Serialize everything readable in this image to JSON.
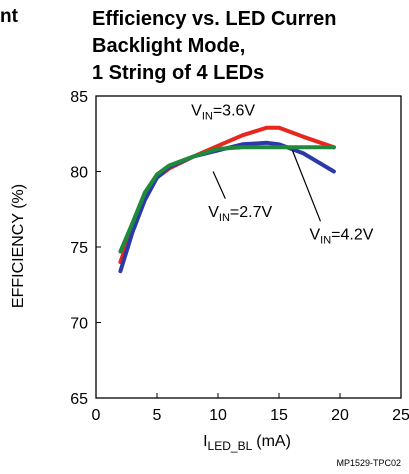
{
  "prev_title_fragment": "nt",
  "footer_code": "MP1529-TPC02",
  "chart_data": {
    "type": "line",
    "title_lines": [
      "Efficiency vs. LED Curren",
      "Backlight Mode,",
      "1 String of 4 LEDs"
    ],
    "xlabel": "I",
    "xlabel_sub": "LED_BL",
    "xlabel_unit": "(mA)",
    "ylabel": "EFFICIENCY (%)",
    "xlim": [
      0,
      25
    ],
    "ylim": [
      65,
      85
    ],
    "xticks": [
      0,
      5,
      10,
      15,
      20,
      25
    ],
    "yticks": [
      65,
      70,
      75,
      80,
      85
    ],
    "grid": false,
    "series": [
      {
        "color": "#e8281e",
        "x": [
          2,
          3,
          4,
          5,
          6,
          8,
          10,
          12,
          14,
          15,
          17,
          19.5
        ],
        "y": [
          74.0,
          76.3,
          78.3,
          79.6,
          80.2,
          81.0,
          81.7,
          82.4,
          82.9,
          82.9,
          82.3,
          81.6
        ]
      },
      {
        "color": "#2b3aa8",
        "x": [
          2,
          3,
          4,
          5,
          6,
          8,
          10,
          12,
          14,
          15,
          17,
          19.5
        ],
        "y": [
          73.4,
          76.0,
          78.1,
          79.6,
          80.3,
          81.0,
          81.4,
          81.8,
          81.9,
          81.8,
          81.2,
          80.0
        ]
      },
      {
        "color": "#1f8a3a",
        "x": [
          2,
          3,
          4,
          5,
          6,
          8,
          10,
          12,
          14,
          15,
          17,
          19.5
        ],
        "y": [
          74.7,
          76.6,
          78.6,
          79.8,
          80.4,
          81.0,
          81.5,
          81.6,
          81.6,
          81.6,
          81.6,
          81.6
        ]
      }
    ],
    "annotations": [
      {
        "main": "V",
        "sub": "IN",
        "value": "=3.6V",
        "x": 7.8,
        "y": 83.7
      },
      {
        "main": "V",
        "sub": "IN",
        "value": "=2.7V",
        "x": 9.2,
        "y": 77.0
      },
      {
        "main": "V",
        "sub": "IN",
        "value": "=4.2V",
        "x": 17.5,
        "y": 75.5
      }
    ]
  }
}
